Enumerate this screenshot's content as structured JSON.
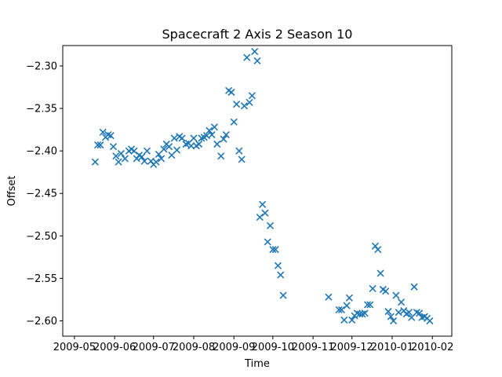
{
  "chart_data": {
    "type": "scatter",
    "title": "Spacecraft 2 Axis 2 Season 10",
    "xlabel": "Time",
    "ylabel": "Offset",
    "x_tick_labels": [
      "2009-05",
      "2009-06",
      "2009-07",
      "2009-08",
      "2009-09",
      "2009-10",
      "2009-11",
      "2009-12",
      "2010-01",
      "2010-02"
    ],
    "y_tick_labels": [
      "−2.30",
      "−2.35",
      "−2.40",
      "−2.45",
      "−2.50",
      "−2.55",
      "−2.60"
    ],
    "xlim": [
      "2009-04-22",
      "2010-02-16"
    ],
    "ylim": [
      -2.618,
      -2.276
    ],
    "grid": false,
    "marker": "x",
    "color": "#1f77b4",
    "x": [
      "2009-05-17",
      "2009-05-19",
      "2009-05-21",
      "2009-05-23",
      "2009-05-25",
      "2009-05-27",
      "2009-05-29",
      "2009-05-31",
      "2009-06-02",
      "2009-06-04",
      "2009-06-06",
      "2009-06-09",
      "2009-06-12",
      "2009-06-14",
      "2009-06-16",
      "2009-06-18",
      "2009-06-20",
      "2009-06-22",
      "2009-06-24",
      "2009-06-26",
      "2009-06-29",
      "2009-07-01",
      "2009-07-03",
      "2009-07-05",
      "2009-07-07",
      "2009-07-09",
      "2009-07-11",
      "2009-07-13",
      "2009-07-15",
      "2009-07-17",
      "2009-07-19",
      "2009-07-21",
      "2009-07-23",
      "2009-07-26",
      "2009-07-28",
      "2009-07-30",
      "2009-08-01",
      "2009-08-03",
      "2009-08-05",
      "2009-08-07",
      "2009-08-09",
      "2009-08-11",
      "2009-08-13",
      "2009-08-15",
      "2009-08-17",
      "2009-08-19",
      "2009-08-22",
      "2009-08-24",
      "2009-08-26",
      "2009-08-28",
      "2009-08-30",
      "2009-09-01",
      "2009-09-03",
      "2009-09-05",
      "2009-09-07",
      "2009-09-09",
      "2009-09-11",
      "2009-09-13",
      "2009-09-15",
      "2009-09-17",
      "2009-09-19",
      "2009-09-21",
      "2009-09-23",
      "2009-09-25",
      "2009-09-27",
      "2009-09-29",
      "2009-10-01",
      "2009-10-03",
      "2009-10-05",
      "2009-10-07",
      "2009-10-09",
      "2009-11-13",
      "2009-11-21",
      "2009-11-23",
      "2009-11-25",
      "2009-11-27",
      "2009-11-29",
      "2009-12-01",
      "2009-12-03",
      "2009-12-05",
      "2009-12-07",
      "2009-12-09",
      "2009-12-11",
      "2009-12-13",
      "2009-12-15",
      "2009-12-17",
      "2009-12-19",
      "2009-12-21",
      "2009-12-23",
      "2009-12-25",
      "2009-12-27",
      "2009-12-29",
      "2009-12-31",
      "2010-01-02",
      "2010-01-04",
      "2010-01-06",
      "2010-01-08",
      "2010-01-10",
      "2010-01-12",
      "2010-01-14",
      "2010-01-16",
      "2010-01-18",
      "2010-01-20",
      "2010-01-22",
      "2010-01-24",
      "2010-01-26",
      "2010-01-28",
      "2010-01-30"
    ],
    "y": [
      -2.413,
      -2.393,
      -2.393,
      -2.378,
      -2.384,
      -2.381,
      -2.382,
      -2.395,
      -2.406,
      -2.413,
      -2.403,
      -2.409,
      -2.4,
      -2.398,
      -2.4,
      -2.409,
      -2.405,
      -2.407,
      -2.412,
      -2.4,
      -2.412,
      -2.416,
      -2.413,
      -2.404,
      -2.409,
      -2.398,
      -2.392,
      -2.395,
      -2.405,
      -2.385,
      -2.399,
      -2.383,
      -2.385,
      -2.392,
      -2.391,
      -2.394,
      -2.385,
      -2.394,
      -2.392,
      -2.385,
      -2.384,
      -2.382,
      -2.376,
      -2.381,
      -2.372,
      -2.392,
      -2.406,
      -2.386,
      -2.381,
      -2.329,
      -2.331,
      -2.366,
      -2.345,
      -2.4,
      -2.41,
      -2.347,
      -2.29,
      -2.343,
      -2.335,
      -2.283,
      -2.294,
      -2.478,
      -2.463,
      -2.473,
      -2.507,
      -2.488,
      -2.516,
      -2.516,
      -2.535,
      -2.546,
      -2.57,
      -2.572,
      -2.587,
      -2.587,
      -2.599,
      -2.582,
      -2.573,
      -2.599,
      -2.594,
      -2.591,
      -2.592,
      -2.592,
      -2.591,
      -2.581,
      -2.581,
      -2.562,
      -2.512,
      -2.516,
      -2.544,
      -2.563,
      -2.565,
      -2.589,
      -2.595,
      -2.6,
      -2.57,
      -2.59,
      -2.578,
      -2.588,
      -2.592,
      -2.59,
      -2.596,
      -2.56,
      -2.59,
      -2.591,
      -2.596,
      -2.595,
      -2.597,
      -2.6
    ]
  }
}
